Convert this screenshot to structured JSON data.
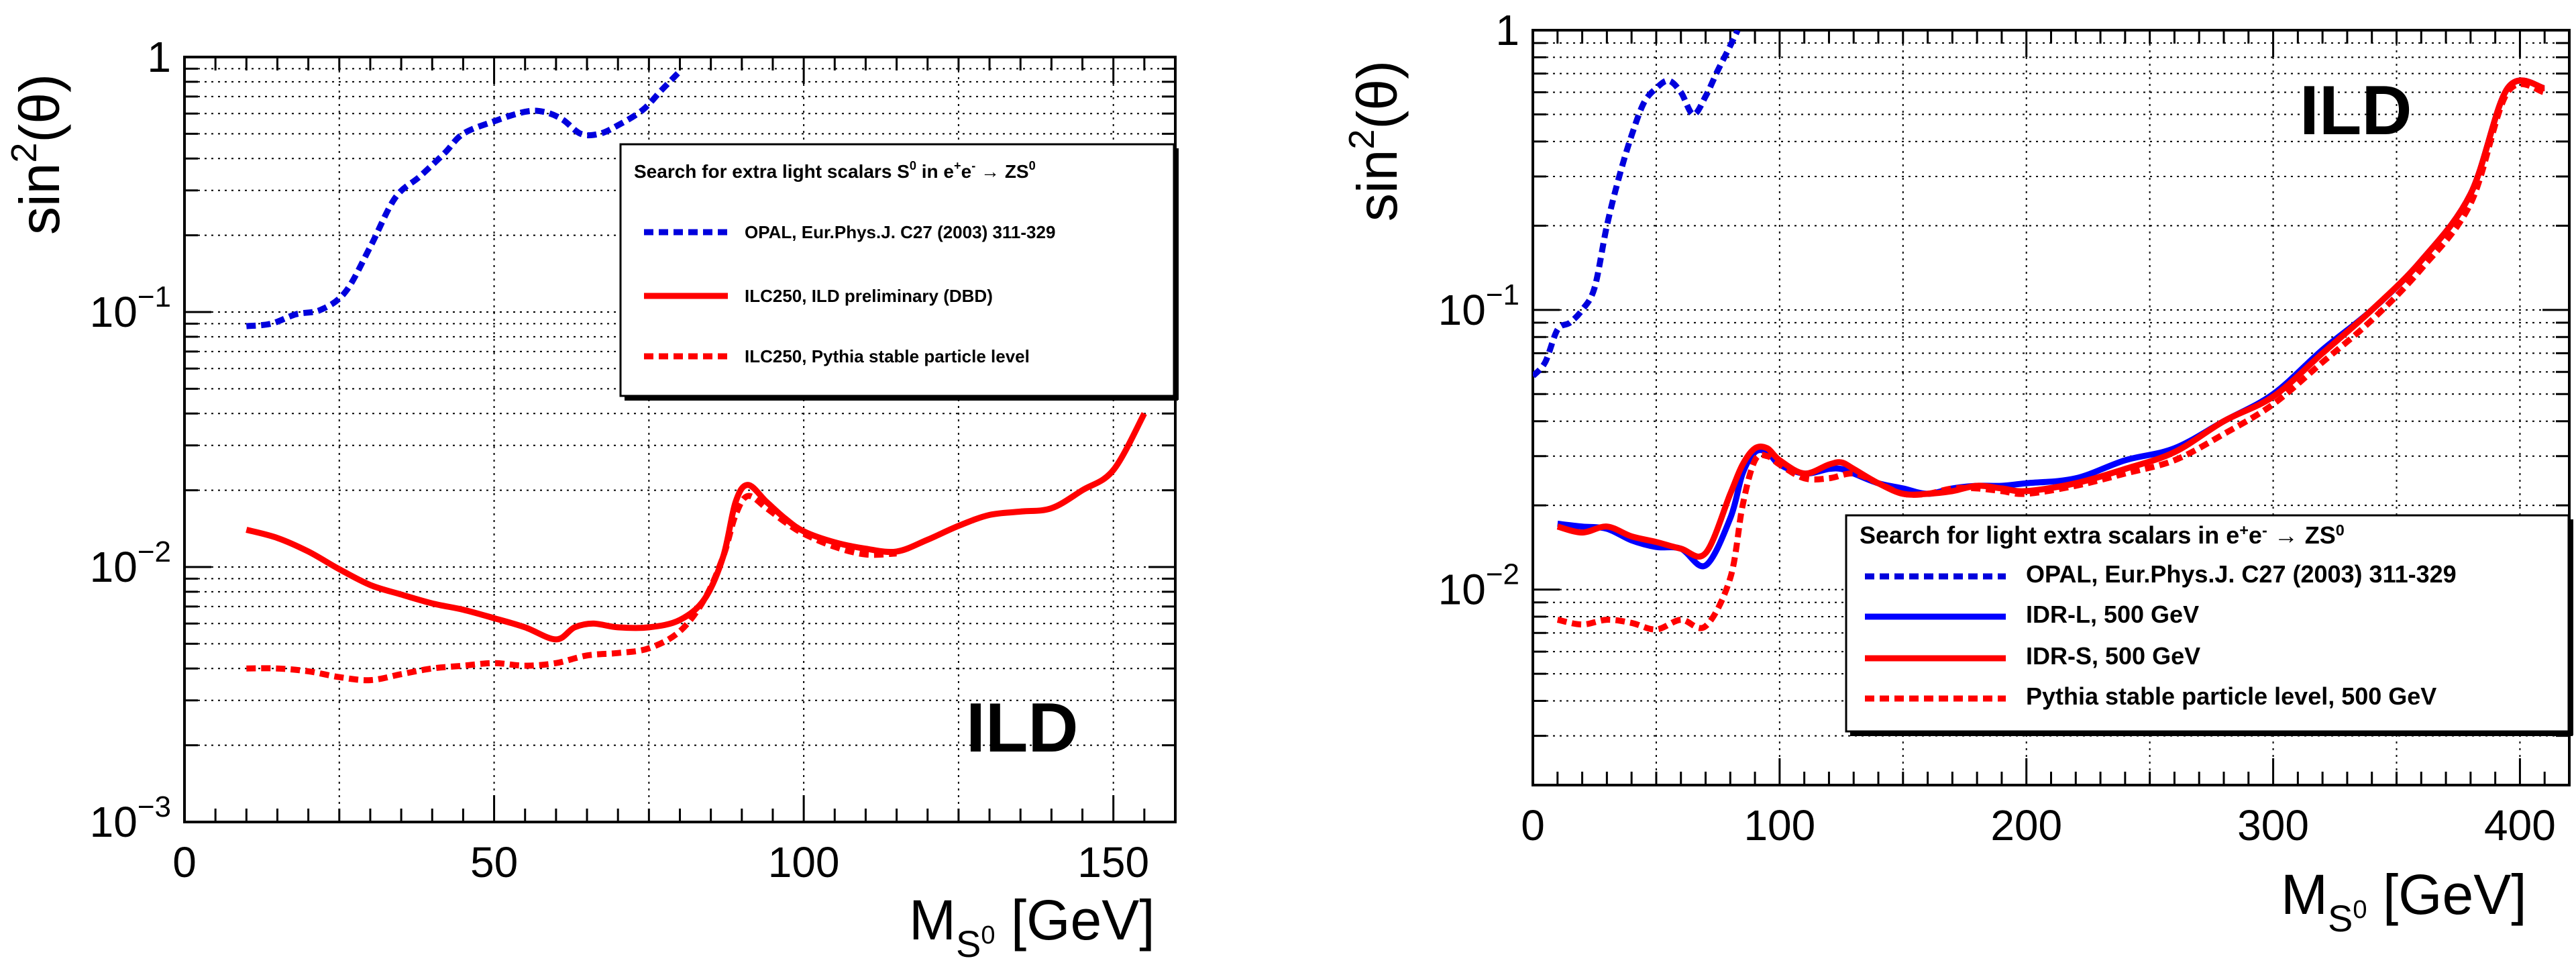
{
  "chart_data": [
    {
      "type": "line",
      "title": "",
      "xlabel": "M",
      "xlabel_sub": "S",
      "xlabel_subsup": "0",
      "xlabel_unit": " [GeV]",
      "ylabel": "sin",
      "ylabel_sup": "2",
      "ylabel_rest": "(θ)",
      "xlim": [
        0,
        160
      ],
      "ylim": [
        0.001,
        1
      ],
      "yscale": "log",
      "grid": true,
      "xticks": [
        0,
        50,
        100,
        150
      ],
      "xtick_labels": [
        "0",
        "50",
        "100",
        "150"
      ],
      "yticks": [
        0.001,
        0.01,
        0.1,
        1
      ],
      "ytick_labels": [
        {
          "base": "10",
          "exp": "−3"
        },
        {
          "base": "10",
          "exp": "−2"
        },
        {
          "base": "10",
          "exp": "−1"
        },
        {
          "base": "1",
          "exp": ""
        }
      ],
      "annotation": "ILD",
      "legend": {
        "title_parts": [
          "Search for extra light scalars S",
          "0",
          " in e",
          "+",
          "e",
          "-",
          " → ZS",
          "0"
        ],
        "placement": "top-right"
      },
      "series": [
        {
          "name": "OPAL, Eur.Phys.J. C27 (2003) 311-329",
          "color": "#0000dd",
          "style": "dashed",
          "x": [
            10,
            14,
            18,
            22,
            26,
            30,
            34,
            38,
            42,
            45,
            50,
            55,
            58,
            61,
            64,
            67,
            70,
            74,
            77,
            80
          ],
          "y": [
            0.088,
            0.09,
            0.098,
            0.102,
            0.12,
            0.18,
            0.28,
            0.34,
            0.42,
            0.5,
            0.56,
            0.61,
            0.61,
            0.57,
            0.5,
            0.5,
            0.54,
            0.62,
            0.74,
            0.88
          ]
        },
        {
          "name": "ILC250, ILD preliminary (DBD)",
          "color": "#ff0000",
          "style": "solid",
          "x": [
            10,
            15,
            20,
            25,
            30,
            35,
            40,
            45,
            50,
            55,
            60,
            63,
            66,
            70,
            75,
            80,
            84,
            87,
            89,
            91,
            94,
            97,
            100,
            105,
            110,
            115,
            120,
            125,
            130,
            135,
            140,
            145,
            150,
            155
          ],
          "y": [
            0.014,
            0.013,
            0.0115,
            0.0098,
            0.0085,
            0.0078,
            0.0072,
            0.0068,
            0.0063,
            0.0058,
            0.0052,
            0.0058,
            0.006,
            0.0058,
            0.0058,
            0.0062,
            0.0075,
            0.011,
            0.018,
            0.021,
            0.018,
            0.0155,
            0.0138,
            0.0125,
            0.0118,
            0.0115,
            0.0128,
            0.0145,
            0.016,
            0.0165,
            0.017,
            0.02,
            0.024,
            0.04
          ]
        },
        {
          "name": "ILC250, Pythia stable particle level",
          "color": "#ff0000",
          "style": "dashed",
          "x": [
            10,
            15,
            20,
            25,
            30,
            35,
            40,
            45,
            50,
            55,
            60,
            65,
            70,
            75,
            80,
            84,
            87,
            89,
            91,
            94,
            97,
            100,
            105,
            110,
            115
          ],
          "y": [
            0.004,
            0.004,
            0.0039,
            0.0037,
            0.0036,
            0.0038,
            0.004,
            0.0041,
            0.0042,
            0.0041,
            0.0042,
            0.0045,
            0.0046,
            0.0048,
            0.0056,
            0.0075,
            0.011,
            0.016,
            0.019,
            0.017,
            0.015,
            0.0135,
            0.012,
            0.0112,
            0.0113
          ]
        }
      ]
    },
    {
      "type": "line",
      "title": "",
      "xlabel": "M",
      "xlabel_sub": "S",
      "xlabel_subsup": "0",
      "xlabel_unit": " [GeV]",
      "ylabel": "sin",
      "ylabel_sup": "2",
      "ylabel_rest": "(θ)",
      "xlim": [
        0,
        420
      ],
      "ylim": [
        0.002,
        1
      ],
      "yscale": "log",
      "grid": true,
      "xticks": [
        0,
        100,
        200,
        300,
        400
      ],
      "xtick_labels": [
        "0",
        "100",
        "200",
        "300",
        "400"
      ],
      "yticks": [
        0.01,
        0.1,
        1
      ],
      "ytick_labels": [
        {
          "base": "10",
          "exp": "−2"
        },
        {
          "base": "10",
          "exp": "−1"
        },
        {
          "base": "1",
          "exp": ""
        }
      ],
      "annotation": "ILD",
      "legend": {
        "title_parts": [
          "Search for light extra scalars in e",
          "+",
          "e",
          "-",
          " → ZS",
          "0"
        ],
        "placement": "bottom-right"
      },
      "series": [
        {
          "name": "OPAL, Eur.Phys.J. C27 (2003) 311-329",
          "color": "#0000dd",
          "style": "dashed",
          "x": [
            0,
            5,
            10,
            15,
            20,
            25,
            30,
            35,
            40,
            45,
            50,
            55,
            60,
            65,
            70,
            75,
            80,
            83
          ],
          "y": [
            0.058,
            0.065,
            0.085,
            0.09,
            0.1,
            0.12,
            0.2,
            0.3,
            0.42,
            0.55,
            0.62,
            0.66,
            0.6,
            0.5,
            0.58,
            0.72,
            0.88,
            1.0
          ]
        },
        {
          "name": "IDR-L, 500 GeV",
          "color": "#0000ff",
          "style": "solid",
          "x": [
            10,
            20,
            30,
            40,
            50,
            60,
            70,
            80,
            85,
            90,
            95,
            100,
            110,
            120,
            125,
            130,
            140,
            150,
            160,
            170,
            180,
            190,
            200,
            220,
            240,
            260,
            280,
            300,
            320,
            340,
            360,
            380,
            395,
            410
          ],
          "y": [
            0.0172,
            0.0168,
            0.0165,
            0.015,
            0.0142,
            0.014,
            0.0122,
            0.018,
            0.026,
            0.031,
            0.031,
            0.028,
            0.026,
            0.027,
            0.027,
            0.026,
            0.024,
            0.023,
            0.022,
            0.023,
            0.0235,
            0.0235,
            0.024,
            0.025,
            0.029,
            0.032,
            0.04,
            0.05,
            0.072,
            0.1,
            0.15,
            0.26,
            0.62,
            0.62
          ]
        },
        {
          "name": "IDR-S, 500 GeV",
          "color": "#ff0000",
          "style": "solid",
          "x": [
            10,
            20,
            30,
            40,
            50,
            60,
            70,
            80,
            85,
            90,
            95,
            100,
            110,
            120,
            125,
            130,
            140,
            150,
            160,
            170,
            180,
            190,
            200,
            220,
            240,
            260,
            280,
            300,
            320,
            340,
            360,
            380,
            395,
            410
          ],
          "y": [
            0.0168,
            0.016,
            0.0168,
            0.0155,
            0.0148,
            0.014,
            0.0135,
            0.022,
            0.028,
            0.032,
            0.032,
            0.029,
            0.026,
            0.028,
            0.0285,
            0.027,
            0.024,
            0.022,
            0.022,
            0.0225,
            0.0235,
            0.023,
            0.0225,
            0.024,
            0.027,
            0.031,
            0.04,
            0.049,
            0.07,
            0.1,
            0.15,
            0.26,
            0.62,
            0.62
          ]
        },
        {
          "name": "Pythia stable particle level, 500 GeV",
          "color": "#ff0000",
          "style": "dashed",
          "x": [
            10,
            20,
            30,
            40,
            50,
            60,
            70,
            80,
            85,
            90,
            95,
            100,
            110,
            120,
            130,
            140,
            150,
            160,
            170,
            180,
            190,
            200,
            220,
            240,
            260,
            280,
            300,
            320,
            340,
            360,
            380,
            395,
            410
          ],
          "y": [
            0.0078,
            0.0075,
            0.0078,
            0.0076,
            0.0072,
            0.0078,
            0.0074,
            0.011,
            0.02,
            0.029,
            0.03,
            0.028,
            0.025,
            0.025,
            0.026,
            0.024,
            0.022,
            0.022,
            0.023,
            0.023,
            0.0225,
            0.022,
            0.0235,
            0.026,
            0.029,
            0.036,
            0.046,
            0.065,
            0.092,
            0.14,
            0.24,
            0.6,
            0.6
          ]
        }
      ]
    }
  ]
}
